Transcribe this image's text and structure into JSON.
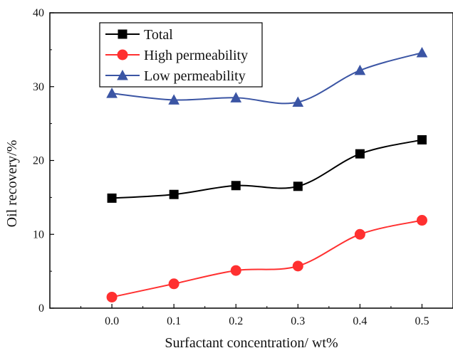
{
  "chart_data": {
    "type": "line",
    "title": "",
    "xlabel": "Surfactant concentration/ wt%",
    "ylabel": "Oil recovery/%",
    "x": [
      0.0,
      0.1,
      0.2,
      0.3,
      0.4,
      0.5
    ],
    "xlim": [
      -0.1,
      0.55
    ],
    "ylim": [
      0,
      40
    ],
    "x_ticks": [
      0.0,
      0.1,
      0.2,
      0.3,
      0.4,
      0.5
    ],
    "x_tick_labels": [
      "0.0",
      "0.1",
      "0.2",
      "0.3",
      "0.4",
      "0.5"
    ],
    "y_ticks": [
      0,
      10,
      20,
      30,
      40
    ],
    "y_tick_labels": [
      "0",
      "10",
      "20",
      "30",
      "40"
    ],
    "grid": false,
    "legend_position": "top-left",
    "series": [
      {
        "name": "Total",
        "values": [
          14.9,
          15.4,
          16.6,
          16.5,
          20.9,
          22.8
        ],
        "color": "#000000",
        "marker": "square"
      },
      {
        "name": "High permeability",
        "values": [
          1.5,
          3.3,
          5.1,
          5.7,
          10.0,
          11.9
        ],
        "color": "#ff3030",
        "marker": "circle"
      },
      {
        "name": "Low permeability",
        "values": [
          29.1,
          28.2,
          28.5,
          27.9,
          32.2,
          34.6
        ],
        "color": "#3b55a4",
        "marker": "triangle"
      }
    ]
  }
}
